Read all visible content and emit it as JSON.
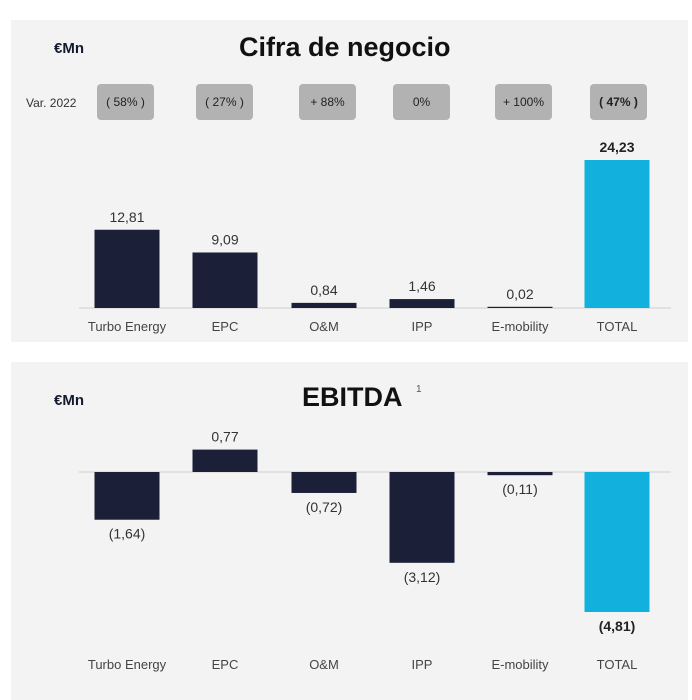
{
  "colors": {
    "bar": "#1b2038",
    "total": "#12b0dc",
    "text": "#333333",
    "pill_bg": "#b2b2b2"
  },
  "chart_data": [
    {
      "type": "bar",
      "title": "Cifra de negocio",
      "unit": "€Mn",
      "var_label": "Var. 2022",
      "categories": [
        "Turbo Energy",
        "EPC",
        "O&M",
        "IPP",
        "E-mobility",
        "TOTAL"
      ],
      "values": [
        12.81,
        9.09,
        0.84,
        1.46,
        0.02,
        24.23
      ],
      "value_labels": [
        "12,81",
        "9,09",
        "0,84",
        "1,46",
        "0,02",
        "24,23"
      ],
      "variations": [
        "( 58% )",
        "( 27% )",
        "+ 88%",
        "0%",
        "+ 100%",
        "( 47% )"
      ],
      "highlight": "TOTAL",
      "ylim": [
        0,
        24.23
      ]
    },
    {
      "type": "bar",
      "title": "EBITDA",
      "title_superscript": "1",
      "unit": "€Mn",
      "categories": [
        "Turbo Energy",
        "EPC",
        "O&M",
        "IPP",
        "E-mobility",
        "TOTAL"
      ],
      "values": [
        -1.64,
        0.77,
        -0.72,
        -3.12,
        -0.11,
        -4.81
      ],
      "value_labels": [
        "(1,64)",
        "0,77",
        "(0,72)",
        "(3,12)",
        "(0,11)",
        "(4,81)"
      ],
      "highlight": "TOTAL",
      "ylim": [
        -4.81,
        0.77
      ]
    }
  ]
}
